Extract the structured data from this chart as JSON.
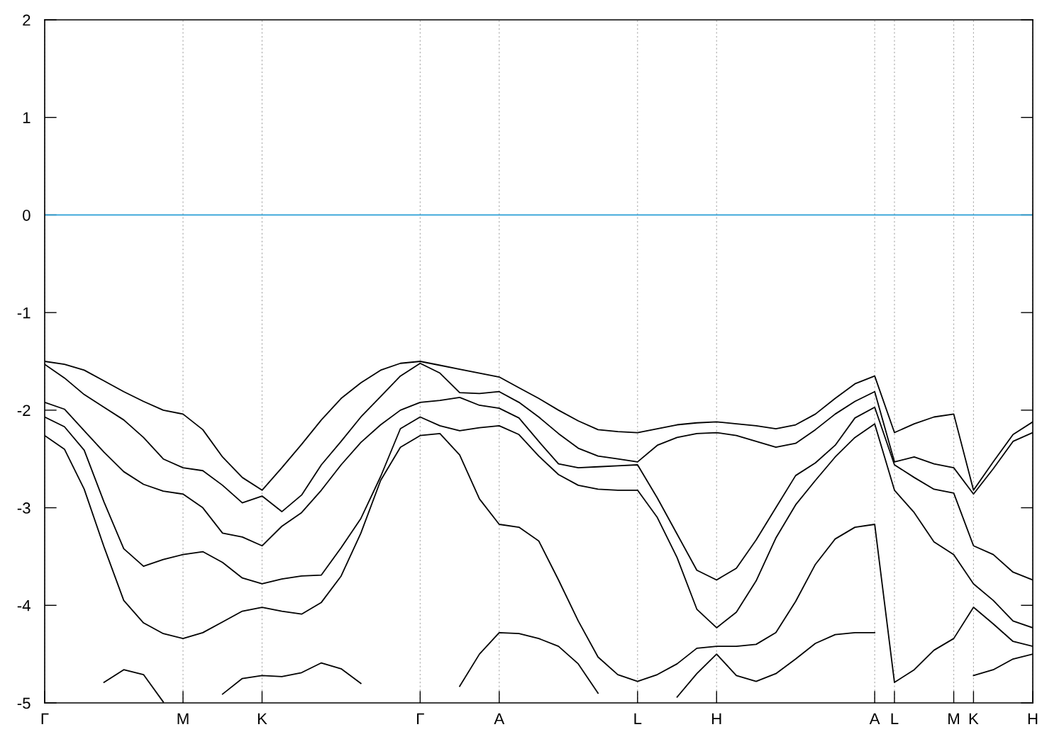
{
  "chart_data": {
    "type": "line",
    "ylim": [
      -5,
      2
    ],
    "categories": [
      "Γ",
      null,
      null,
      null,
      null,
      null,
      null,
      "M",
      null,
      null,
      null,
      "K",
      null,
      null,
      null,
      null,
      null,
      null,
      null,
      "Γ",
      null,
      null,
      null,
      "A",
      null,
      null,
      null,
      null,
      null,
      null,
      "L",
      null,
      null,
      null,
      "H",
      null,
      null,
      null,
      null,
      null,
      null,
      null,
      "A",
      "L",
      null,
      null,
      "M",
      "K",
      null,
      null,
      "H"
    ],
    "yticks": [
      -5,
      -4,
      -3,
      -2,
      -1,
      0,
      1,
      2
    ],
    "grid": "x",
    "line_style": "solid",
    "marker": "none",
    "ref_lines": [
      {
        "axis": "y",
        "value": 0,
        "color": "#2a9fd6",
        "line_style": "solid"
      }
    ],
    "series": [
      {
        "color": "#000000",
        "values": [
          -1.5,
          -1.53,
          -1.59,
          -1.7,
          -1.81,
          -1.91,
          -2.0,
          -2.04,
          -2.2,
          -2.48,
          -2.69,
          -2.82,
          -2.59,
          -2.35,
          -2.1,
          -1.88,
          -1.72,
          -1.59,
          -1.52,
          -1.5,
          -1.54,
          -1.58,
          -1.62,
          -1.66,
          -1.77,
          -1.88,
          -2.0,
          -2.11,
          -2.2,
          -2.22,
          -2.23,
          -2.19,
          -2.15,
          -2.13,
          -2.12,
          -2.14,
          -2.16,
          -2.19,
          -2.15,
          -2.04,
          -1.88,
          -1.73,
          -1.65,
          -2.23,
          -2.14,
          -2.07,
          -2.04,
          -2.82,
          -2.53,
          -2.25,
          -2.12
        ]
      },
      {
        "color": "#000000",
        "values": [
          -1.53,
          -1.67,
          -1.84,
          -1.97,
          -2.1,
          -2.28,
          -2.5,
          -2.59,
          -2.62,
          -2.77,
          -2.95,
          -2.88,
          -3.04,
          -2.87,
          -2.56,
          -2.32,
          -2.07,
          -1.86,
          -1.65,
          -1.52,
          -1.62,
          -1.82,
          -1.83,
          -1.81,
          -1.92,
          -2.07,
          -2.24,
          -2.39,
          -2.47,
          -2.5,
          -2.53,
          -2.36,
          -2.28,
          -2.24,
          -2.23,
          -2.26,
          -2.32,
          -2.38,
          -2.34,
          -2.2,
          -2.04,
          -1.91,
          -1.81,
          -2.53,
          -2.48,
          -2.55,
          -2.59,
          -2.86,
          -2.6,
          -2.32,
          -2.23
        ]
      },
      {
        "color": "#000000",
        "values": [
          -1.92,
          -1.99,
          -2.21,
          -2.43,
          -2.63,
          -2.76,
          -2.83,
          -2.86,
          -3.0,
          -3.26,
          -3.3,
          -3.39,
          -3.19,
          -3.05,
          -2.82,
          -2.56,
          -2.33,
          -2.15,
          -2.0,
          -1.92,
          -1.9,
          -1.87,
          -1.95,
          -1.98,
          -2.08,
          -2.32,
          -2.55,
          -2.59,
          -2.58,
          -2.57,
          -2.56,
          -2.9,
          -3.27,
          -3.64,
          -3.74,
          -3.62,
          -3.33,
          -3.0,
          -2.67,
          -2.54,
          -2.36,
          -2.08,
          -1.97,
          -2.56,
          -2.69,
          -2.81,
          -2.85,
          -3.39,
          -3.48,
          -3.66,
          -3.74
        ]
      },
      {
        "color": "#000000",
        "values": [
          -2.07,
          -2.17,
          -2.41,
          -2.94,
          -3.42,
          -3.6,
          -3.53,
          -3.48,
          -3.45,
          -3.56,
          -3.72,
          -3.78,
          -3.73,
          -3.7,
          -3.69,
          -3.41,
          -3.11,
          -2.68,
          -2.19,
          -2.07,
          -2.16,
          -2.21,
          -2.18,
          -2.16,
          -2.25,
          -2.47,
          -2.66,
          -2.77,
          -2.81,
          -2.82,
          -2.82,
          -3.1,
          -3.51,
          -4.04,
          -4.23,
          -4.07,
          -3.75,
          -3.31,
          -2.97,
          -2.72,
          -2.48,
          -2.28,
          -2.14,
          -2.82,
          -3.05,
          -3.35,
          -3.48,
          -3.78,
          -3.95,
          -4.16,
          -4.23
        ]
      },
      {
        "color": "#000000",
        "values": [
          -2.26,
          -2.4,
          -2.81,
          -3.4,
          -3.95,
          -4.18,
          -4.29,
          -4.34,
          -4.28,
          -4.17,
          -4.06,
          -4.02,
          -4.06,
          -4.09,
          -3.97,
          -3.7,
          -3.26,
          -2.72,
          -2.38,
          -2.26,
          -2.24,
          -2.46,
          -2.91,
          -3.17,
          -3.2,
          -3.34,
          -3.74,
          -4.16,
          -4.53,
          -4.71,
          -4.78,
          -4.71,
          -4.6,
          -4.44,
          -4.42,
          -4.42,
          -4.4,
          -4.28,
          -3.96,
          -3.58,
          -3.32,
          -3.2,
          -3.17,
          -4.79,
          -4.66,
          -4.46,
          -4.34,
          -4.02,
          -4.19,
          -4.37,
          -4.42
        ]
      },
      {
        "color": "#000000",
        "values": [
          null,
          null,
          null,
          -4.79,
          -4.66,
          -4.71,
          -4.99,
          null,
          null,
          -4.91,
          -4.75,
          -4.72,
          -4.73,
          -4.69,
          -4.59,
          -4.65,
          -4.8,
          null,
          null,
          null,
          null,
          -4.83,
          -4.5,
          -4.28,
          -4.29,
          -4.34,
          -4.42,
          -4.6,
          -4.9,
          null,
          null,
          null,
          -4.94,
          -4.7,
          -4.5,
          -4.72,
          -4.78,
          -4.7,
          -4.55,
          -4.39,
          -4.3,
          -4.28,
          -4.28,
          null,
          null,
          null,
          null,
          -4.72,
          -4.66,
          -4.55,
          -4.5
        ]
      }
    ]
  }
}
